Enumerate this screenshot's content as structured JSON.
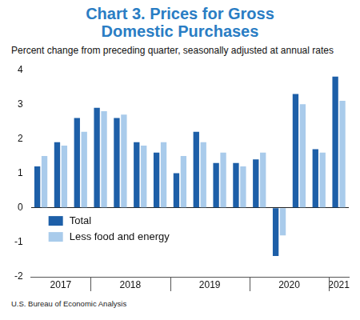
{
  "chart_data": {
    "type": "bar",
    "title": "Chart 3. Prices for Gross Domestic Purchases",
    "subtitle": "Percent change from preceding quarter, seasonally adjusted at annual rates",
    "source": "U.S. Bureau of Economic Analysis",
    "categories": [
      "2017",
      null,
      null,
      "2018",
      null,
      null,
      null,
      "2019",
      null,
      null,
      null,
      "2020",
      null,
      null,
      null,
      "2021"
    ],
    "series": [
      {
        "name": "Total",
        "color": "#1d5fa8",
        "values": [
          1.2,
          1.9,
          2.6,
          2.9,
          2.6,
          1.9,
          1.6,
          1.0,
          2.2,
          1.3,
          1.3,
          1.4,
          -1.4,
          3.3,
          1.7,
          3.8
        ]
      },
      {
        "name": "Less food and energy",
        "color": "#a9cbeb",
        "values": [
          1.5,
          1.8,
          2.2,
          2.8,
          2.7,
          1.8,
          1.9,
          1.5,
          1.9,
          1.6,
          1.2,
          1.6,
          -0.8,
          3.0,
          1.6,
          3.1
        ]
      }
    ],
    "ylim": [
      -2,
      4
    ],
    "yticks": [
      -2,
      -1,
      0,
      1,
      2,
      3,
      4
    ],
    "grid": false,
    "legend": "lower left"
  }
}
